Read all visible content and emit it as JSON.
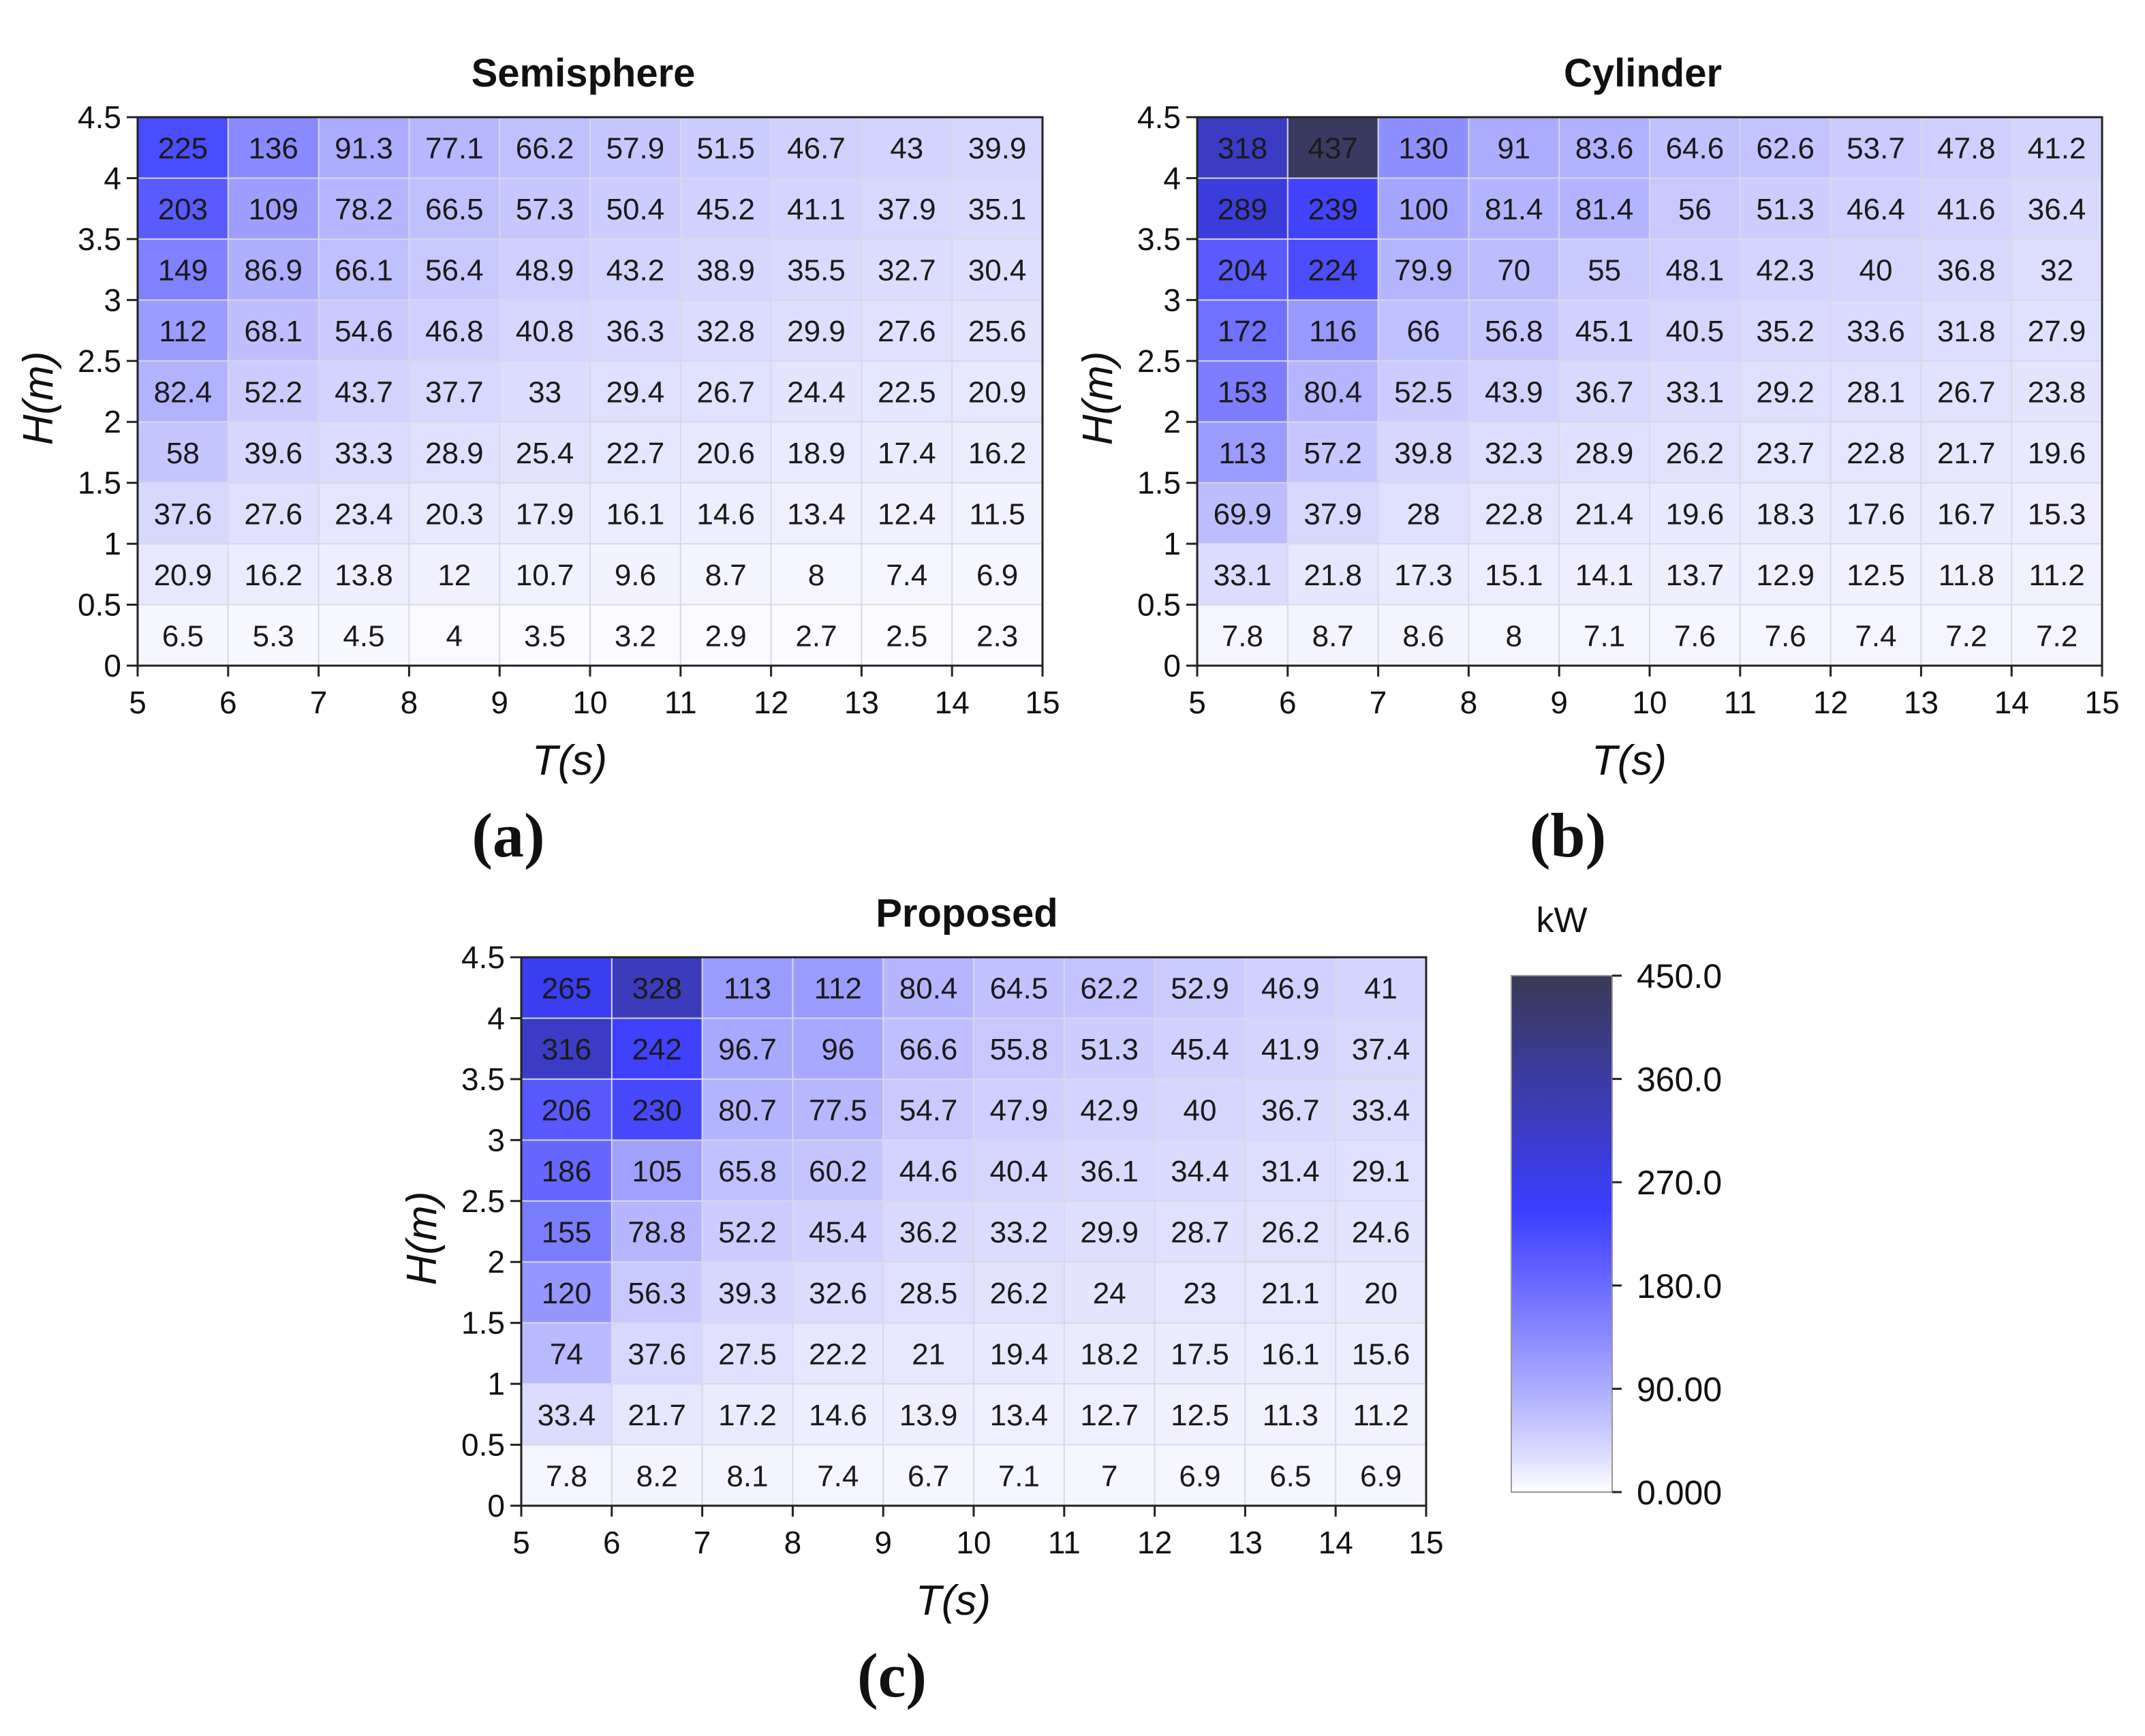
{
  "chart_data": [
    {
      "type": "heatmap",
      "title": "Semisphere",
      "panel": "(a)",
      "xlabel": "T(s)",
      "ylabel": "H(m)",
      "xlim": [
        5,
        15
      ],
      "ylim": [
        0,
        4.5
      ],
      "x_ticks": [
        "5",
        "6",
        "7",
        "8",
        "9",
        "10",
        "11",
        "12",
        "13",
        "14",
        "15"
      ],
      "y_ticks": [
        "0",
        "0.5",
        "1",
        "1.5",
        "2",
        "2.5",
        "3",
        "3.5",
        "4",
        "4.5"
      ],
      "rows_top_to_bottom": [
        [
          "225",
          "136",
          "91.3",
          "77.1",
          "66.2",
          "57.9",
          "51.5",
          "46.7",
          "43",
          "39.9"
        ],
        [
          "203",
          "109",
          "78.2",
          "66.5",
          "57.3",
          "50.4",
          "45.2",
          "41.1",
          "37.9",
          "35.1"
        ],
        [
          "149",
          "86.9",
          "66.1",
          "56.4",
          "48.9",
          "43.2",
          "38.9",
          "35.5",
          "32.7",
          "30.4"
        ],
        [
          "112",
          "68.1",
          "54.6",
          "46.8",
          "40.8",
          "36.3",
          "32.8",
          "29.9",
          "27.6",
          "25.6"
        ],
        [
          "82.4",
          "52.2",
          "43.7",
          "37.7",
          "33",
          "29.4",
          "26.7",
          "24.4",
          "22.5",
          "20.9"
        ],
        [
          "58",
          "39.6",
          "33.3",
          "28.9",
          "25.4",
          "22.7",
          "20.6",
          "18.9",
          "17.4",
          "16.2"
        ],
        [
          "37.6",
          "27.6",
          "23.4",
          "20.3",
          "17.9",
          "16.1",
          "14.6",
          "13.4",
          "12.4",
          "11.5"
        ],
        [
          "20.9",
          "16.2",
          "13.8",
          "12",
          "10.7",
          "9.6",
          "8.7",
          "8",
          "7.4",
          "6.9"
        ],
        [
          "6.5",
          "5.3",
          "4.5",
          "4",
          "3.5",
          "3.2",
          "2.9",
          "2.7",
          "2.5",
          "2.3"
        ]
      ]
    },
    {
      "type": "heatmap",
      "title": "Cylinder",
      "panel": "(b)",
      "xlabel": "T(s)",
      "ylabel": "H(m)",
      "xlim": [
        5,
        15
      ],
      "ylim": [
        0,
        4.5
      ],
      "x_ticks": [
        "5",
        "6",
        "7",
        "8",
        "9",
        "10",
        "11",
        "12",
        "13",
        "14",
        "15"
      ],
      "y_ticks": [
        "0",
        "0.5",
        "1",
        "1.5",
        "2",
        "2.5",
        "3",
        "3.5",
        "4",
        "4.5"
      ],
      "rows_top_to_bottom": [
        [
          "318",
          "437",
          "130",
          "91",
          "83.6",
          "64.6",
          "62.6",
          "53.7",
          "47.8",
          "41.2"
        ],
        [
          "289",
          "239",
          "100",
          "81.4",
          "81.4",
          "56",
          "51.3",
          "46.4",
          "41.6",
          "36.4"
        ],
        [
          "204",
          "224",
          "79.9",
          "70",
          "55",
          "48.1",
          "42.3",
          "40",
          "36.8",
          "32"
        ],
        [
          "172",
          "116",
          "66",
          "56.8",
          "45.1",
          "40.5",
          "35.2",
          "33.6",
          "31.8",
          "27.9"
        ],
        [
          "153",
          "80.4",
          "52.5",
          "43.9",
          "36.7",
          "33.1",
          "29.2",
          "28.1",
          "26.7",
          "23.8"
        ],
        [
          "113",
          "57.2",
          "39.8",
          "32.3",
          "28.9",
          "26.2",
          "23.7",
          "22.8",
          "21.7",
          "19.6"
        ],
        [
          "69.9",
          "37.9",
          "28",
          "22.8",
          "21.4",
          "19.6",
          "18.3",
          "17.6",
          "16.7",
          "15.3"
        ],
        [
          "33.1",
          "21.8",
          "17.3",
          "15.1",
          "14.1",
          "13.7",
          "12.9",
          "12.5",
          "11.8",
          "11.2"
        ],
        [
          "7.8",
          "8.7",
          "8.6",
          "8",
          "7.1",
          "7.6",
          "7.6",
          "7.4",
          "7.2",
          "7.2"
        ]
      ]
    },
    {
      "type": "heatmap",
      "title": "Proposed",
      "panel": "(c)",
      "xlabel": "T(s)",
      "ylabel": "H(m)",
      "xlim": [
        5,
        15
      ],
      "ylim": [
        0,
        4.5
      ],
      "x_ticks": [
        "5",
        "6",
        "7",
        "8",
        "9",
        "10",
        "11",
        "12",
        "13",
        "14",
        "15"
      ],
      "y_ticks": [
        "0",
        "0.5",
        "1",
        "1.5",
        "2",
        "2.5",
        "3",
        "3.5",
        "4",
        "4.5"
      ],
      "rows_top_to_bottom": [
        [
          "265",
          "328",
          "113",
          "112",
          "80.4",
          "64.5",
          "62.2",
          "52.9",
          "46.9",
          "41"
        ],
        [
          "316",
          "242",
          "96.7",
          "96",
          "66.6",
          "55.8",
          "51.3",
          "45.4",
          "41.9",
          "37.4"
        ],
        [
          "206",
          "230",
          "80.7",
          "77.5",
          "54.7",
          "47.9",
          "42.9",
          "40",
          "36.7",
          "33.4"
        ],
        [
          "186",
          "105",
          "65.8",
          "60.2",
          "44.6",
          "40.4",
          "36.1",
          "34.4",
          "31.4",
          "29.1"
        ],
        [
          "155",
          "78.8",
          "52.2",
          "45.4",
          "36.2",
          "33.2",
          "29.9",
          "28.7",
          "26.2",
          "24.6"
        ],
        [
          "120",
          "56.3",
          "39.3",
          "32.6",
          "28.5",
          "26.2",
          "24",
          "23",
          "21.1",
          "20"
        ],
        [
          "74",
          "37.6",
          "27.5",
          "22.2",
          "21",
          "19.4",
          "18.2",
          "17.5",
          "16.1",
          "15.6"
        ],
        [
          "33.4",
          "21.7",
          "17.2",
          "14.6",
          "13.9",
          "13.4",
          "12.7",
          "12.5",
          "11.3",
          "11.2"
        ],
        [
          "7.8",
          "8.2",
          "8.1",
          "7.4",
          "6.7",
          "7.1",
          "7",
          "6.9",
          "6.5",
          "6.9"
        ]
      ]
    }
  ],
  "colorbar": {
    "unit": "kW",
    "min": 0,
    "max": 450,
    "tick_labels": [
      "450.0",
      "360.0",
      "270.0",
      "180.0",
      "90.00",
      "0.000"
    ],
    "colors": {
      "low": "#ffffff",
      "mid": "#3b3dff",
      "high": "#3a3a55"
    }
  }
}
